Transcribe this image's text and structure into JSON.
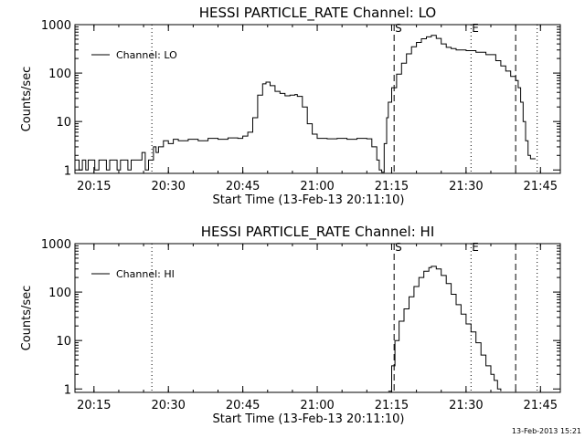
{
  "timestamp": "13-Feb-2013 15:21",
  "chart_data": [
    {
      "type": "line",
      "title": "HESSI PARTICLE_RATE Channel: LO",
      "xlabel": "Start Time (13-Feb-13 20:11:10)",
      "ylabel": "Counts/sec",
      "yscale": "log",
      "xlim": [
        "20:11:10",
        "21:49:00"
      ],
      "ylim": [
        0.85,
        1000
      ],
      "x_ticks": [
        "20:15",
        "20:30",
        "20:45",
        "21:00",
        "21:15",
        "21:30",
        "21:45"
      ],
      "y_ticks": [
        "1",
        "10",
        "100",
        "1000"
      ],
      "legend": {
        "label": "Channel: LO",
        "position": "top-left"
      },
      "markers": [
        {
          "label": "S",
          "time": "21:15:30",
          "style": "dashed"
        },
        {
          "label": "E",
          "time": "21:31:00",
          "style": "dotted"
        }
      ],
      "vlines": [
        {
          "time": "20:26:40",
          "style": "dotted"
        },
        {
          "time": "21:40:00",
          "style": "dashed"
        },
        {
          "time": "21:44:20",
          "style": "dotted"
        }
      ],
      "series": [
        {
          "name": "Channel: LO",
          "x": [
            "20:11:10",
            "20:12:00",
            "20:12:40",
            "20:13:20",
            "20:13:50",
            "20:14:30",
            "20:15:10",
            "20:16:00",
            "20:16:40",
            "20:17:30",
            "20:18:10",
            "20:18:50",
            "20:19:40",
            "20:20:20",
            "20:21:10",
            "20:21:50",
            "20:22:30",
            "20:23:20",
            "20:24:00",
            "20:24:40",
            "20:25:20",
            "20:26:00",
            "20:26:40",
            "20:27:00",
            "20:27:30",
            "20:28:00",
            "20:29:00",
            "20:30:00",
            "20:31:00",
            "20:32:00",
            "20:34:00",
            "20:36:00",
            "20:38:00",
            "20:40:00",
            "20:42:00",
            "20:44:00",
            "20:45:00",
            "20:46:00",
            "20:47:00",
            "20:48:00",
            "20:49:00",
            "20:49:40",
            "20:50:30",
            "20:51:30",
            "20:52:30",
            "20:53:30",
            "20:54:30",
            "20:55:30",
            "20:56:00",
            "20:57:00",
            "20:58:00",
            "20:59:00",
            "21:00:00",
            "21:02:00",
            "21:04:00",
            "21:06:00",
            "21:08:00",
            "21:10:00",
            "21:11:00",
            "21:12:00",
            "21:12:30",
            "21:13:00",
            "21:13:30",
            "21:14:00",
            "21:14:20",
            "21:15:00",
            "21:16:00",
            "21:17:00",
            "21:18:00",
            "21:19:00",
            "21:20:00",
            "21:21:00",
            "21:22:00",
            "21:23:00",
            "21:24:00",
            "21:25:00",
            "21:26:00",
            "21:27:00",
            "21:28:00",
            "21:30:00",
            "21:32:00",
            "21:34:00",
            "21:36:00",
            "21:37:00",
            "21:38:00",
            "21:39:00",
            "21:40:00",
            "21:40:30",
            "21:41:00",
            "21:41:30",
            "21:42:00",
            "21:42:30",
            "21:43:00",
            "21:44:00"
          ],
          "y": [
            1.6,
            1.0,
            1.6,
            1.0,
            1.6,
            1.6,
            1.0,
            1.6,
            1.6,
            1.0,
            1.6,
            1.6,
            1.0,
            1.6,
            1.6,
            1.0,
            1.6,
            1.6,
            1.6,
            2.3,
            1.0,
            1.6,
            1.6,
            3.0,
            2.3,
            3.0,
            4.0,
            3.5,
            4.3,
            4.0,
            4.3,
            4.0,
            4.5,
            4.3,
            4.6,
            4.5,
            5.0,
            6.0,
            12.0,
            35.0,
            60.0,
            65.0,
            55.0,
            42.0,
            38.0,
            34.0,
            35.0,
            36.0,
            33.0,
            20.0,
            9.0,
            5.5,
            4.5,
            4.4,
            4.5,
            4.3,
            4.5,
            4.4,
            3.0,
            1.6,
            1.0,
            0.9,
            3.5,
            12.0,
            25.0,
            50.0,
            95.0,
            160.0,
            250.0,
            350.0,
            430.0,
            510.0,
            560.0,
            600.0,
            520.0,
            400.0,
            340.0,
            320.0,
            300.0,
            290.0,
            270.0,
            240.0,
            180.0,
            140.0,
            110.0,
            85.0,
            70.0,
            50.0,
            25.0,
            10.0,
            4.0,
            2.0,
            1.7,
            1.7
          ]
        }
      ]
    },
    {
      "type": "line",
      "title": "HESSI PARTICLE_RATE Channel: HI",
      "xlabel": "Start Time (13-Feb-13 20:11:10)",
      "ylabel": "Counts/sec",
      "yscale": "log",
      "xlim": [
        "20:11:10",
        "21:49:00"
      ],
      "ylim": [
        0.85,
        1000
      ],
      "x_ticks": [
        "20:15",
        "20:30",
        "20:45",
        "21:00",
        "21:15",
        "21:30",
        "21:45"
      ],
      "y_ticks": [
        "1",
        "10",
        "100",
        "1000"
      ],
      "legend": {
        "label": "Channel: HI",
        "position": "top-left"
      },
      "markers": [
        {
          "label": "S",
          "time": "21:15:30",
          "style": "dashed"
        },
        {
          "label": "E",
          "time": "21:31:00",
          "style": "dotted"
        }
      ],
      "vlines": [
        {
          "time": "20:26:40",
          "style": "dotted"
        },
        {
          "time": "21:40:00",
          "style": "dashed"
        },
        {
          "time": "21:44:20",
          "style": "dotted"
        }
      ],
      "series": [
        {
          "name": "Channel: HI",
          "x": [
            "21:14:20",
            "21:15:00",
            "21:15:40",
            "21:16:30",
            "21:17:30",
            "21:18:30",
            "21:19:30",
            "21:20:30",
            "21:21:30",
            "21:22:30",
            "21:23:00",
            "21:24:00",
            "21:25:00",
            "21:26:00",
            "21:27:00",
            "21:28:00",
            "21:29:00",
            "21:30:00",
            "21:31:00",
            "21:32:00",
            "21:33:00",
            "21:34:00",
            "21:35:00",
            "21:35:40",
            "21:36:20",
            "21:37:00"
          ],
          "y": [
            0.9,
            3.0,
            10.0,
            25.0,
            45.0,
            80.0,
            130.0,
            200.0,
            270.0,
            320.0,
            340.0,
            300.0,
            220.0,
            150.0,
            90.0,
            55.0,
            35.0,
            22.0,
            15.0,
            9.0,
            5.0,
            3.0,
            2.0,
            1.5,
            1.0,
            0.9
          ]
        }
      ]
    }
  ]
}
